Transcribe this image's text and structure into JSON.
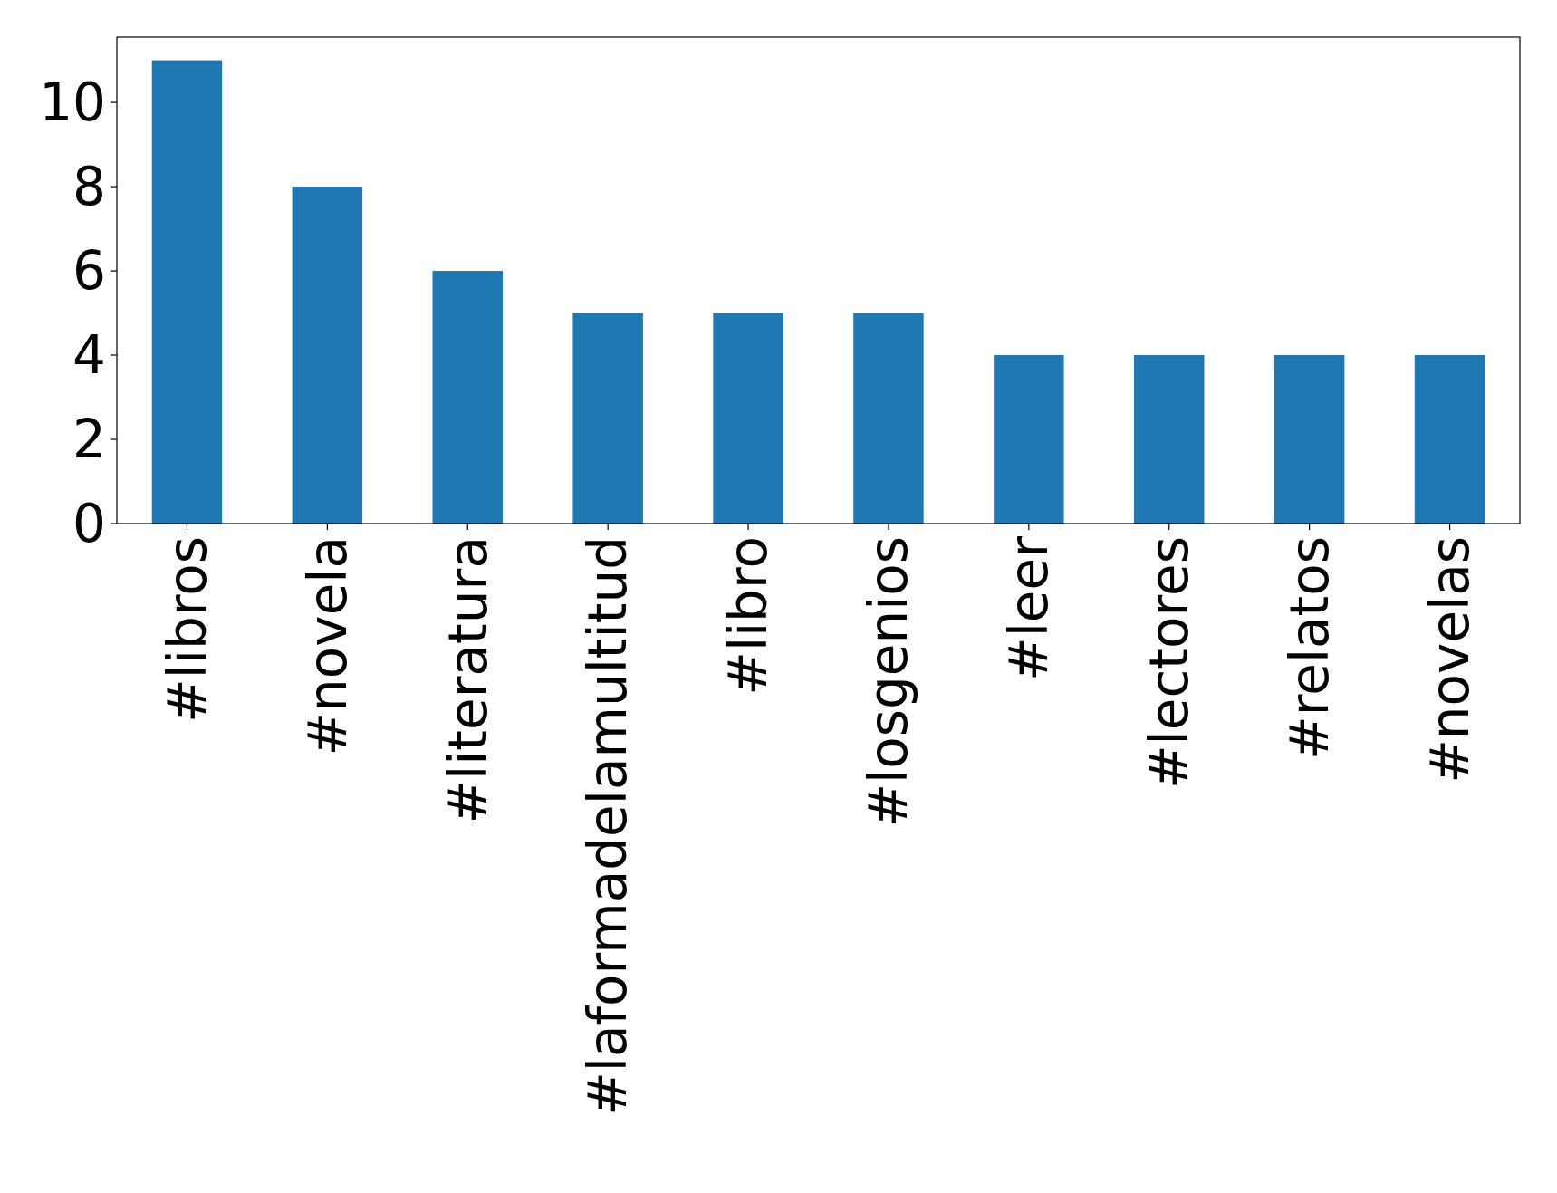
{
  "chart_data": {
    "type": "bar",
    "categories": [
      "#libros",
      "#novela",
      "#literatura",
      "#laformadelamultitud",
      "#libro",
      "#losgenios",
      "#leer",
      "#lectores",
      "#relatos",
      "#novelas"
    ],
    "values": [
      11,
      8,
      6,
      5,
      5,
      5,
      4,
      4,
      4,
      4
    ],
    "color": "#1f77b4",
    "ylim": [
      0,
      11.55
    ],
    "yticks": [
      0,
      2,
      4,
      6,
      8,
      10
    ],
    "grid": false
  }
}
